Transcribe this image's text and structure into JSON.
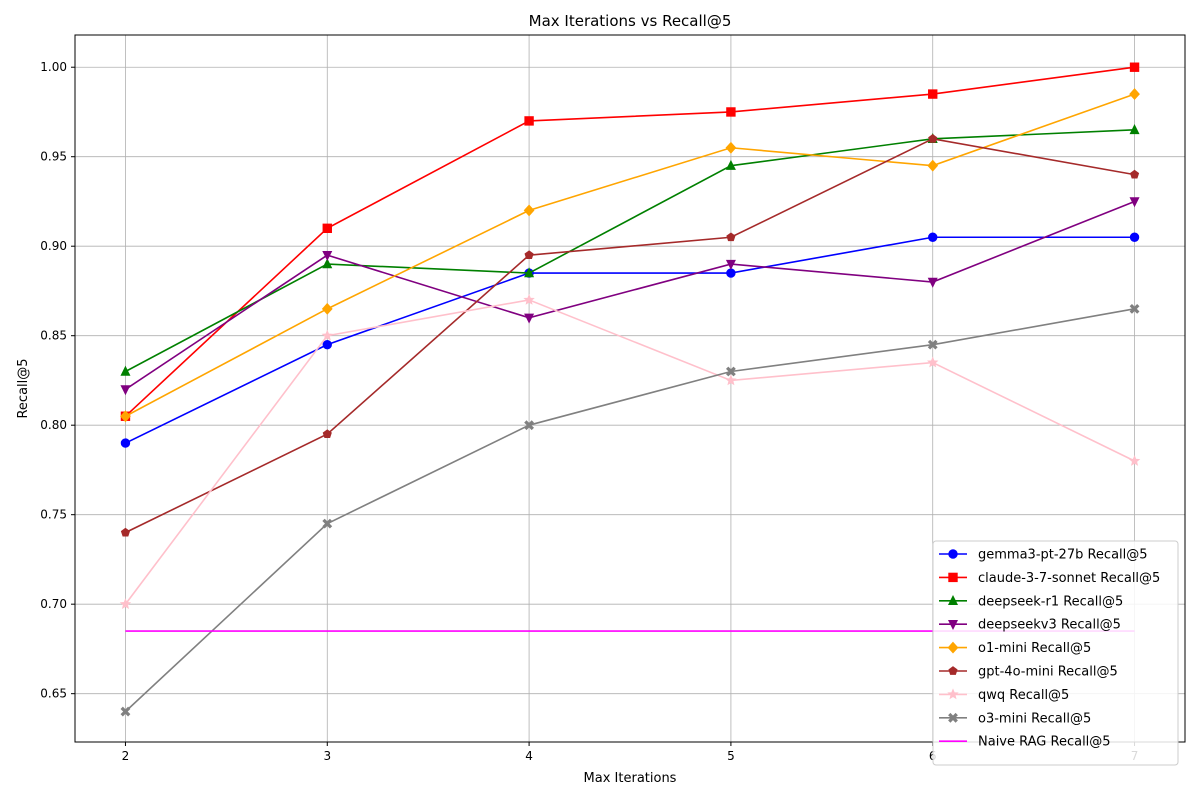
{
  "chart_data": {
    "type": "line",
    "title": "Max Iterations vs Recall@5",
    "xlabel": "Max Iterations",
    "ylabel": "Recall@5",
    "x": [
      2,
      3,
      4,
      5,
      6,
      7
    ],
    "xlim": [
      1.75,
      7.25
    ],
    "ylim": [
      0.623,
      1.018
    ],
    "xticks": [
      "2",
      "3",
      "4",
      "5",
      "6",
      "7"
    ],
    "yticks": [
      "0.65",
      "0.70",
      "0.75",
      "0.80",
      "0.85",
      "0.90",
      "0.95",
      "1.00"
    ],
    "grid": true,
    "legend_position": "lower-right",
    "series": [
      {
        "name": "gemma3-pt-27b Recall@5",
        "color": "#0000ff",
        "marker": "circle",
        "values": [
          0.79,
          0.845,
          0.885,
          0.885,
          0.905,
          0.905
        ]
      },
      {
        "name": "claude-3-7-sonnet Recall@5",
        "color": "#ff0000",
        "marker": "square",
        "values": [
          0.805,
          0.91,
          0.97,
          0.975,
          0.985,
          1.0
        ]
      },
      {
        "name": "deepseek-r1 Recall@5",
        "color": "#008000",
        "marker": "triangle-up",
        "values": [
          0.83,
          0.89,
          0.885,
          0.945,
          0.96,
          0.965
        ]
      },
      {
        "name": "deepseekv3 Recall@5",
        "color": "#800080",
        "marker": "triangle-down",
        "values": [
          0.82,
          0.895,
          0.86,
          0.89,
          0.88,
          0.925
        ]
      },
      {
        "name": "o1-mini Recall@5",
        "color": "#ffa500",
        "marker": "diamond",
        "values": [
          0.805,
          0.865,
          0.92,
          0.955,
          0.945,
          0.985
        ]
      },
      {
        "name": "gpt-4o-mini Recall@5",
        "color": "#a52a2a",
        "marker": "pentagon",
        "values": [
          0.74,
          0.795,
          0.895,
          0.905,
          0.96,
          0.94
        ]
      },
      {
        "name": "qwq Recall@5",
        "color": "#ffc0cb",
        "marker": "star",
        "values": [
          0.7,
          0.85,
          0.87,
          0.825,
          0.835,
          0.78
        ]
      },
      {
        "name": "o3-mini Recall@5",
        "color": "#808080",
        "marker": "x",
        "values": [
          0.64,
          0.745,
          0.8,
          0.83,
          0.845,
          0.865
        ]
      },
      {
        "name": "Naive RAG Recall@5",
        "color": "#ff00ff",
        "marker": "none",
        "values": [
          0.685,
          0.685,
          0.685,
          0.685,
          0.685,
          0.685
        ]
      }
    ]
  }
}
